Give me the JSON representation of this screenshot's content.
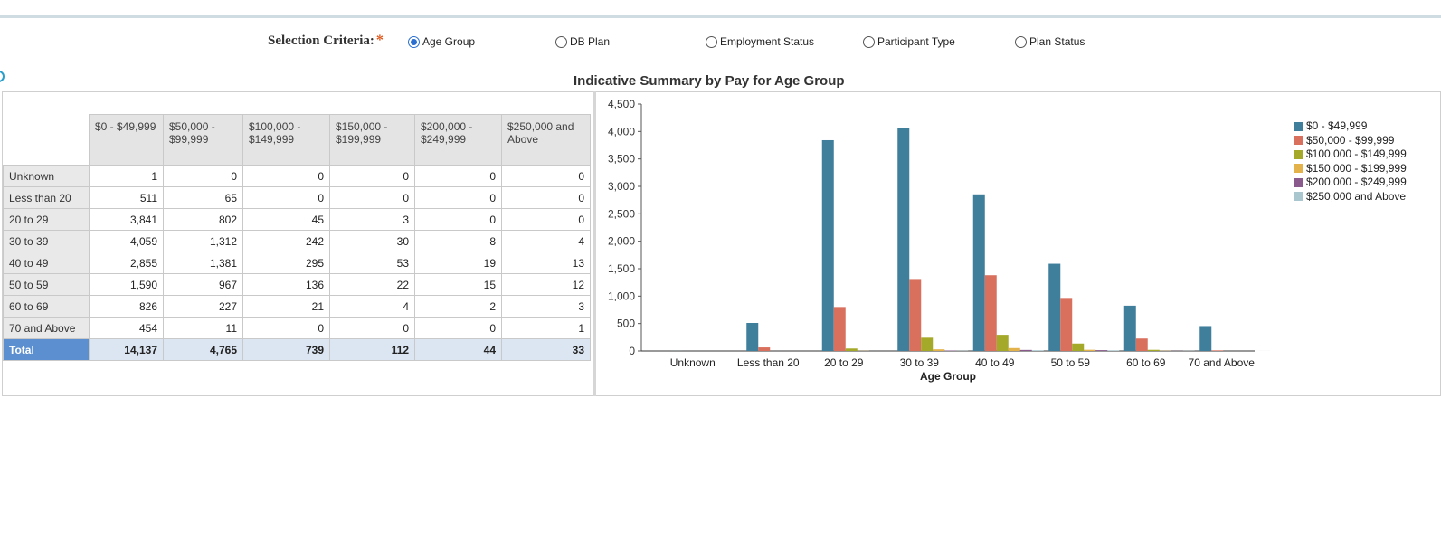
{
  "selection": {
    "label": "Selection Criteria:",
    "required_mark": "*",
    "options": [
      {
        "label": "Age Group",
        "selected": true
      },
      {
        "label": "DB Plan",
        "selected": false
      },
      {
        "label": "Employment Status",
        "selected": false
      },
      {
        "label": "Participant Type",
        "selected": false
      },
      {
        "label": "Plan Status",
        "selected": false
      }
    ]
  },
  "title": "Indicative Summary by Pay for Age Group",
  "table": {
    "columns": [
      "$0 - $49,999",
      "$50,000 - $99,999",
      "$100,000 - $149,999",
      "$150,000 - $199,999",
      "$200,000 - $249,999",
      "$250,000 and Above"
    ],
    "rows": [
      {
        "label": "Unknown",
        "values": [
          "1",
          "0",
          "0",
          "0",
          "0",
          "0"
        ]
      },
      {
        "label": "Less than 20",
        "values": [
          "511",
          "65",
          "0",
          "0",
          "0",
          "0"
        ]
      },
      {
        "label": "20 to 29",
        "values": [
          "3,841",
          "802",
          "45",
          "3",
          "0",
          "0"
        ]
      },
      {
        "label": "30 to 39",
        "values": [
          "4,059",
          "1,312",
          "242",
          "30",
          "8",
          "4"
        ]
      },
      {
        "label": "40 to 49",
        "values": [
          "2,855",
          "1,381",
          "295",
          "53",
          "19",
          "13"
        ]
      },
      {
        "label": "50 to 59",
        "values": [
          "1,590",
          "967",
          "136",
          "22",
          "15",
          "12"
        ]
      },
      {
        "label": "60 to 69",
        "values": [
          "826",
          "227",
          "21",
          "4",
          "2",
          "3"
        ]
      },
      {
        "label": "70 and Above",
        "values": [
          "454",
          "11",
          "0",
          "0",
          "0",
          "1"
        ]
      }
    ],
    "total": {
      "label": "Total",
      "values": [
        "14,137",
        "4,765",
        "739",
        "112",
        "44",
        "33"
      ]
    }
  },
  "chart_data": {
    "type": "bar",
    "xlabel": "Age Group",
    "ylabel": "",
    "ylim": [
      0,
      4500
    ],
    "yticks": [
      0,
      500,
      1000,
      1500,
      2000,
      2500,
      3000,
      3500,
      4000,
      4500
    ],
    "ytick_labels": [
      "0",
      "500",
      "1,000",
      "1,500",
      "2,000",
      "2,500",
      "3,000",
      "3,500",
      "4,000",
      "4,500"
    ],
    "legend_position": "right",
    "categories": [
      "Unknown",
      "Less than 20",
      "20 to 29",
      "30 to 39",
      "40 to 49",
      "50 to 59",
      "60 to 69",
      "70 and Above"
    ],
    "series": [
      {
        "name": "$0 - $49,999",
        "color": "#3f7f9c",
        "values": [
          1,
          511,
          3841,
          4059,
          2855,
          1590,
          826,
          454
        ]
      },
      {
        "name": "$50,000 - $99,999",
        "color": "#d9705e",
        "values": [
          0,
          65,
          802,
          1312,
          1381,
          967,
          227,
          11
        ]
      },
      {
        "name": "$100,000 - $149,999",
        "color": "#a5a92a",
        "values": [
          0,
          0,
          45,
          242,
          295,
          136,
          21,
          0
        ]
      },
      {
        "name": "$150,000 - $199,999",
        "color": "#e3b24a",
        "values": [
          0,
          0,
          3,
          30,
          53,
          22,
          4,
          0
        ]
      },
      {
        "name": "$200,000 - $249,999",
        "color": "#8a5a8c",
        "values": [
          0,
          0,
          0,
          8,
          19,
          15,
          2,
          0
        ]
      },
      {
        "name": "$250,000 and Above",
        "color": "#a9c5cd",
        "values": [
          0,
          0,
          0,
          4,
          13,
          12,
          3,
          1
        ]
      }
    ]
  }
}
